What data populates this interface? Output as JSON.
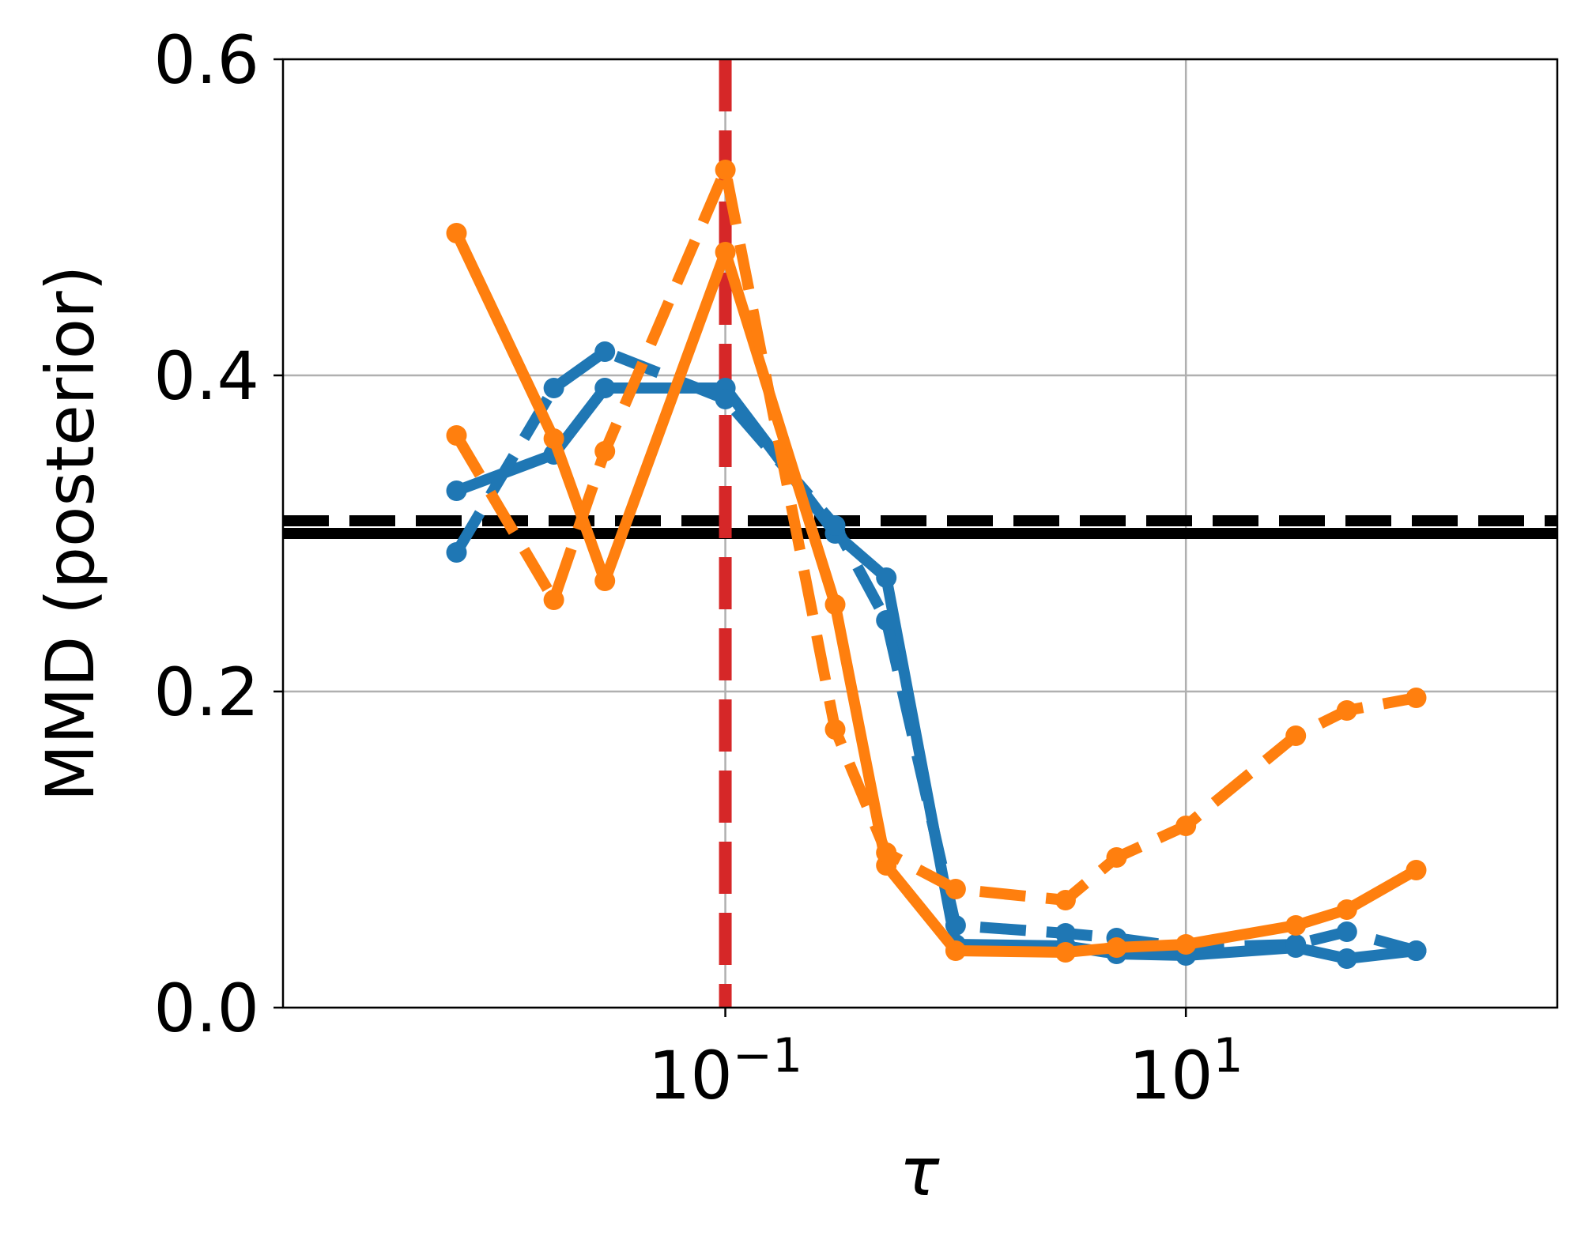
{
  "chart_data": {
    "type": "line",
    "title": "",
    "xlabel": "τ",
    "ylabel": "MMD (posterior)",
    "x_scale": "log",
    "xlim": [
      0.0012,
      410
    ],
    "ylim": [
      0,
      0.6
    ],
    "grid": true,
    "legend": "none",
    "y_ticks": [
      {
        "value": 0.0,
        "label": "0.0"
      },
      {
        "value": 0.2,
        "label": "0.2"
      },
      {
        "value": 0.4,
        "label": "0.4"
      },
      {
        "value": 0.6,
        "label": "0.6"
      }
    ],
    "x_ticks": [
      {
        "value": 0.1,
        "base": "10",
        "exp": "−1"
      },
      {
        "value": 10,
        "base": "10",
        "exp": "1"
      }
    ],
    "reference_lines": [
      {
        "orientation": "horizontal",
        "value": 0.3,
        "color": "#000000",
        "style": "solid"
      },
      {
        "orientation": "horizontal",
        "value": 0.308,
        "color": "#000000",
        "style": "dashed"
      },
      {
        "orientation": "vertical",
        "value": 0.1,
        "color": "#d62728",
        "style": "dashed"
      }
    ],
    "series": [
      {
        "color": "#1f77b4",
        "style": "solid",
        "points": [
          [
            0.0068,
            0.327
          ],
          [
            0.018,
            0.35
          ],
          [
            0.03,
            0.392
          ],
          [
            0.1,
            0.392
          ],
          [
            0.3,
            0.3
          ],
          [
            0.5,
            0.272
          ],
          [
            1.0,
            0.04
          ],
          [
            3.0,
            0.039
          ],
          [
            5.0,
            0.034
          ],
          [
            10.0,
            0.033
          ],
          [
            30.0,
            0.038
          ],
          [
            50.0,
            0.031
          ],
          [
            100.0,
            0.036
          ]
        ]
      },
      {
        "color": "#1f77b4",
        "style": "dashed",
        "points": [
          [
            0.0068,
            0.288
          ],
          [
            0.018,
            0.392
          ],
          [
            0.03,
            0.415
          ],
          [
            0.1,
            0.385
          ],
          [
            0.3,
            0.305
          ],
          [
            0.5,
            0.245
          ],
          [
            1.0,
            0.052
          ],
          [
            3.0,
            0.047
          ],
          [
            5.0,
            0.044
          ],
          [
            10.0,
            0.038
          ],
          [
            30.0,
            0.04
          ],
          [
            50.0,
            0.048
          ],
          [
            100.0,
            0.036
          ]
        ]
      },
      {
        "color": "#ff7f0e",
        "style": "solid",
        "points": [
          [
            0.0068,
            0.49
          ],
          [
            0.018,
            0.36
          ],
          [
            0.03,
            0.27
          ],
          [
            0.1,
            0.478
          ],
          [
            0.3,
            0.255
          ],
          [
            0.5,
            0.09
          ],
          [
            1.0,
            0.036
          ],
          [
            3.0,
            0.035
          ],
          [
            5.0,
            0.038
          ],
          [
            10.0,
            0.04
          ],
          [
            30.0,
            0.052
          ],
          [
            50.0,
            0.062
          ],
          [
            100.0,
            0.087
          ]
        ]
      },
      {
        "color": "#ff7f0e",
        "style": "dashed",
        "points": [
          [
            0.0068,
            0.362
          ],
          [
            0.018,
            0.258
          ],
          [
            0.03,
            0.352
          ],
          [
            0.1,
            0.53
          ],
          [
            0.3,
            0.176
          ],
          [
            0.5,
            0.098
          ],
          [
            1.0,
            0.075
          ],
          [
            3.0,
            0.068
          ],
          [
            5.0,
            0.095
          ],
          [
            10.0,
            0.115
          ],
          [
            30.0,
            0.172
          ],
          [
            50.0,
            0.188
          ],
          [
            100.0,
            0.196
          ]
        ]
      }
    ]
  }
}
